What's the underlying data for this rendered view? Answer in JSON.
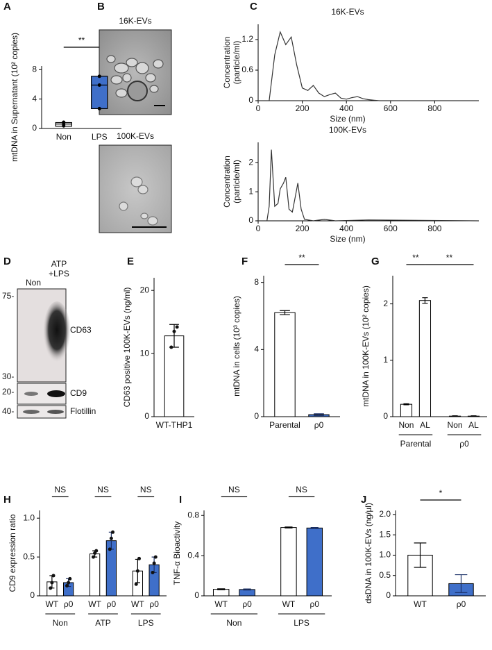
{
  "chart_data": [
    {
      "type": "box",
      "panel": "A",
      "ylabel": "mtDNA in Supernatant (10² copies)",
      "categories": [
        "Non",
        "LPS"
      ],
      "q1": [
        0.3,
        2.7
      ],
      "median": [
        0.6,
        5.9
      ],
      "q3": [
        0.8,
        7.1
      ],
      "points": [
        [
          0.35,
          0.6,
          0.85
        ],
        [
          2.7,
          5.9,
          7.1
        ]
      ],
      "colors": [
        "#ffffff",
        "#3f6fc9"
      ],
      "ylim": [
        0,
        8.5
      ],
      "yticks": [
        0,
        4,
        8
      ],
      "significance": [
        "**"
      ]
    },
    {
      "type": "line",
      "panel": "C",
      "title": "16K-EVs",
      "ylabel": [
        "Concentration",
        "(particle/ml)"
      ],
      "xlabel": "Size (nm)",
      "x": [
        0,
        50,
        75,
        100,
        125,
        150,
        175,
        200,
        225,
        250,
        275,
        300,
        325,
        350,
        375,
        400,
        425,
        450,
        475,
        500,
        525,
        550,
        600,
        1000
      ],
      "values": [
        0,
        0,
        0.9,
        1.35,
        1.1,
        1.25,
        0.7,
        0.25,
        0.2,
        0.3,
        0.15,
        0.08,
        0.12,
        0.15,
        0.05,
        0.03,
        0.06,
        0.08,
        0.04,
        0.02,
        0.01,
        0,
        0,
        0
      ],
      "color": "#333333",
      "xlim": [
        0,
        1000
      ],
      "xticks": [
        0,
        200,
        400,
        600,
        800
      ],
      "ylim": [
        0,
        1.5
      ],
      "yticks": [
        0,
        0.6,
        1.2
      ]
    },
    {
      "type": "line",
      "panel": null,
      "title": "100K-EVs",
      "ylabel": [
        "Concentration",
        "(particle/ml)"
      ],
      "xlabel": "Size (nm)",
      "x": [
        0,
        40,
        50,
        60,
        75,
        90,
        100,
        115,
        125,
        140,
        155,
        170,
        180,
        195,
        210,
        250,
        300,
        350,
        500,
        1000
      ],
      "values": [
        0,
        0,
        0.5,
        2.45,
        0.5,
        0.6,
        1.1,
        1.3,
        1.5,
        0.4,
        0.3,
        0.9,
        1.3,
        0.4,
        0.05,
        0,
        0.05,
        0,
        0.03,
        0
      ],
      "color": "#333333",
      "xlim": [
        0,
        1000
      ],
      "xticks": [
        0,
        200,
        400,
        600,
        800
      ],
      "ylim": [
        0,
        2.7
      ],
      "yticks": [
        0,
        1,
        2
      ]
    },
    {
      "type": "bar",
      "panel": "E",
      "ylabel": "CD63 positive 100K-EVs (ng/ml)",
      "categories": [
        "WT-THP1"
      ],
      "values": [
        12.8
      ],
      "errors": [
        1.8
      ],
      "points": [
        [
          11,
          13.5,
          14.2
        ]
      ],
      "colors": [
        "#ffffff"
      ],
      "ylim": [
        0,
        22
      ],
      "yticks": [
        0,
        10,
        20
      ]
    },
    {
      "type": "bar",
      "panel": "F",
      "ylabel": "mtDNA in cells (10³ copies)",
      "categories": [
        "Parental",
        "ρ0"
      ],
      "values": [
        6.2,
        0.12
      ],
      "errors": [
        0.12,
        0.05
      ],
      "colors": [
        "#ffffff",
        "#3f6fc9"
      ],
      "ylim": [
        0,
        8.4
      ],
      "yticks": [
        0,
        4,
        8
      ],
      "significance": [
        "**"
      ]
    },
    {
      "type": "bar",
      "panel": "G",
      "ylabel": "mtDNA in 100K-EVs (10² copies)",
      "categories": [
        "Non",
        "AL",
        "Non",
        "AL"
      ],
      "groups": [
        "Parental",
        "ρ0"
      ],
      "values": [
        0.22,
        2.06,
        0.01,
        0.01
      ],
      "errors": [
        0.01,
        0.05,
        0.005,
        0.005
      ],
      "colors": [
        "#ffffff",
        "#ffffff",
        "#ffffff",
        "#ffffff"
      ],
      "ylim": [
        0,
        2.5
      ],
      "yticks": [
        0,
        1,
        2
      ],
      "significance": [
        "**",
        "**"
      ]
    },
    {
      "type": "bar",
      "panel": "H",
      "ylabel": "CD9 expression ratio",
      "categories": [
        "WT",
        "ρ0",
        "WT",
        "ρ0",
        "WT",
        "ρ0"
      ],
      "groups": [
        "Non",
        "ATP",
        "LPS"
      ],
      "values": [
        0.18,
        0.17,
        0.54,
        0.71,
        0.32,
        0.4
      ],
      "errors": [
        0.08,
        0.05,
        0.04,
        0.11,
        0.15,
        0.1
      ],
      "points": [
        [
          0.1,
          0.17,
          0.26
        ],
        [
          0.13,
          0.17,
          0.22
        ],
        [
          0.5,
          0.55,
          0.58
        ],
        [
          0.6,
          0.74,
          0.82
        ],
        [
          0.15,
          0.32,
          0.48
        ],
        [
          0.3,
          0.42,
          0.5
        ]
      ],
      "colors": [
        "#ffffff",
        "#3f6fc9",
        "#ffffff",
        "#3f6fc9",
        "#ffffff",
        "#3f6fc9"
      ],
      "ylim": [
        0,
        1.1
      ],
      "yticks": [
        0,
        0.5,
        {
          "value": 1,
          "label": "1.0"
        }
      ],
      "significance": [
        "NS",
        "NS",
        "NS"
      ]
    },
    {
      "type": "bar",
      "panel": "I",
      "ylabel": "TNF-α Bioactivity",
      "categories": [
        "WT",
        "ρ0",
        "WT",
        "ρ0"
      ],
      "groups": [
        "Non",
        "LPS"
      ],
      "values": [
        0.065,
        0.063,
        0.68,
        0.675
      ],
      "errors": [
        0.005,
        0.005,
        0.005,
        0.005
      ],
      "colors": [
        "#ffffff",
        "#3f6fc9",
        "#ffffff",
        "#3f6fc9"
      ],
      "ylim": [
        0,
        0.85
      ],
      "yticks": [
        0,
        0.4,
        0.8
      ],
      "significance": [
        "NS",
        "NS"
      ]
    },
    {
      "type": "bar",
      "panel": "J",
      "ylabel": "dsDNA in 100K-EVs (ng/µl)",
      "categories": [
        "WT",
        "ρ0"
      ],
      "values": [
        1.0,
        0.3
      ],
      "errors": [
        0.3,
        0.22
      ],
      "colors": [
        "#ffffff",
        "#3f6fc9"
      ],
      "ylim": [
        0,
        2.1
      ],
      "yticks": [
        0,
        0.5,
        {
          "value": 1,
          "label": "1.0"
        },
        1.5,
        {
          "value": 2,
          "label": "2.0"
        }
      ],
      "significance": [
        "*"
      ]
    }
  ],
  "images": {
    "B": {
      "panel": "B",
      "titles": [
        "16K-EVs",
        "100K-EVs"
      ]
    },
    "D": {
      "panel": "D",
      "lanes": [
        "Non",
        "ATP",
        "+LPS"
      ],
      "bands": [
        "CD63",
        "CD9",
        "Flotillin"
      ],
      "markers": [
        "75-",
        "30-",
        "20-",
        "40-"
      ]
    }
  }
}
